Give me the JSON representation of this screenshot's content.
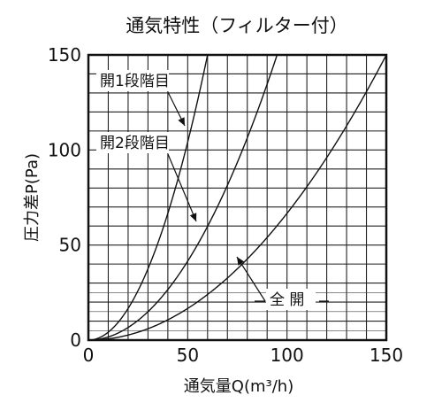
{
  "chart_data": {
    "type": "line",
    "title": "通気特性（フィルター付）",
    "xlabel": "通気量Q(m³/h)",
    "ylabel": "圧力差P(Pa)",
    "xlim": [
      0,
      150
    ],
    "ylim": [
      0,
      150
    ],
    "x_ticks": [
      "0",
      "50",
      "100",
      "150"
    ],
    "y_ticks": [
      "0",
      "50",
      "100",
      "150"
    ],
    "grid": true,
    "series": [
      {
        "name": "開1段階目",
        "x": [
          0,
          10,
          20,
          30,
          40,
          50,
          60
        ],
        "y": [
          0,
          4.2,
          16.7,
          37.5,
          66.7,
          104.2,
          150
        ]
      },
      {
        "name": "開2段階目",
        "x": [
          0,
          20,
          40,
          60,
          80,
          95
        ],
        "y": [
          0,
          6.6,
          26.6,
          59.8,
          106.4,
          150
        ]
      },
      {
        "name": "全 開",
        "x": [
          0,
          25,
          50,
          75,
          100,
          125,
          150
        ],
        "y": [
          0,
          4.2,
          16.7,
          37.5,
          66.7,
          104.2,
          150
        ]
      }
    ]
  }
}
